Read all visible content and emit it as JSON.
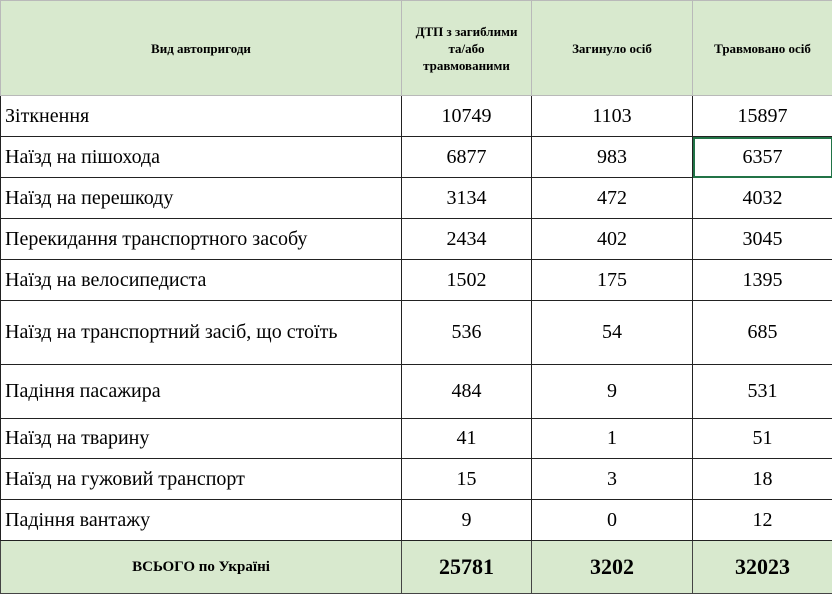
{
  "table": {
    "header": [
      "Вид автопригоди",
      "ДТП з загиблими та/або травмованими",
      "Загинуло осіб",
      "Травмовано осіб"
    ],
    "rows": [
      [
        "Зіткнення",
        10749,
        1103,
        15897
      ],
      [
        "Наїзд на пішохода",
        6877,
        983,
        6357
      ],
      [
        "Наїзд на перешкоду",
        3134,
        472,
        4032
      ],
      [
        "Перекидання транспортного засобу",
        2434,
        402,
        3045
      ],
      [
        "Наїзд на велосипедиста",
        1502,
        175,
        1395
      ],
      [
        "Наїзд на транспортний засіб, що стоїть",
        536,
        54,
        685
      ],
      [
        "Падіння пасажира",
        484,
        9,
        531
      ],
      [
        "Наїзд на тварину",
        41,
        1,
        51
      ],
      [
        "Наїзд на гужовий транспорт",
        15,
        3,
        18
      ],
      [
        "Падіння вантажу",
        9,
        0,
        12
      ]
    ],
    "total": [
      "ВСЬОГО по Україні",
      25781,
      3202,
      32023
    ]
  }
}
